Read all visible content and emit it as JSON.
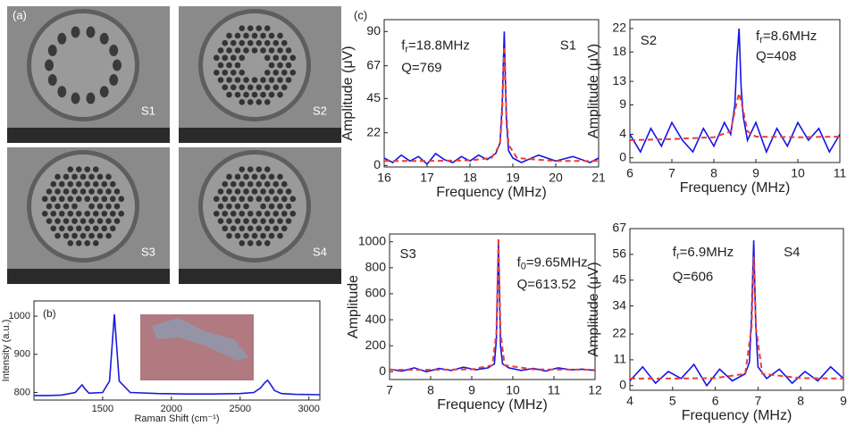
{
  "panel_labels": [
    "(a)",
    "(b)",
    "(c)"
  ],
  "sem_labels": [
    "S1",
    "S2",
    "S3",
    "S4"
  ],
  "chart_data": [
    {
      "type": "line",
      "xlabel": "Raman Shift (cm⁻¹)",
      "ylabel": "Intensity (a.u.)",
      "xlim": [
        1000,
        3080
      ],
      "xticks": [
        1500,
        2000,
        2500,
        3000
      ],
      "ylim": [
        780,
        1040
      ],
      "yticks": [
        800,
        900,
        1000
      ],
      "series": [
        {
          "color": "#1a1adc",
          "x": [
            1000,
            1100,
            1200,
            1300,
            1330,
            1350,
            1370,
            1400,
            1500,
            1550,
            1570,
            1585,
            1600,
            1620,
            1700,
            1900,
            2100,
            2300,
            2500,
            2600,
            2650,
            2680,
            2700,
            2720,
            2750,
            2800,
            2900,
            3080
          ],
          "values": [
            792,
            792,
            793,
            800,
            812,
            820,
            810,
            798,
            800,
            830,
            930,
            1005,
            930,
            830,
            800,
            797,
            796,
            796,
            797,
            800,
            812,
            826,
            832,
            822,
            805,
            797,
            795,
            794
          ]
        }
      ]
    },
    {
      "type": "line",
      "xlabel": "Frequency  (MHz)",
      "ylabel": "Amplitude (μV)",
      "annotations": [
        [
          "f",
          "r",
          "=18.8MHz"
        ],
        "Q=769",
        "S1"
      ],
      "xlim": [
        16,
        21
      ],
      "xticks": [
        16,
        17,
        18,
        19,
        20,
        21
      ],
      "ylim": [
        -1,
        98
      ],
      "yticks": [
        0,
        22,
        45,
        67,
        90
      ],
      "series": [
        {
          "color": "#1414e6",
          "x": [
            16,
            16.2,
            16.4,
            16.6,
            16.8,
            17,
            17.2,
            17.4,
            17.6,
            17.8,
            18,
            18.2,
            18.4,
            18.6,
            18.7,
            18.75,
            18.8,
            18.85,
            18.9,
            19,
            19.2,
            19.6,
            20,
            20.4,
            20.8,
            21
          ],
          "values": [
            5,
            2,
            7,
            3,
            6,
            1,
            8,
            4,
            2,
            6,
            3,
            7,
            4,
            8,
            15,
            40,
            90,
            30,
            10,
            5,
            2,
            7,
            3,
            6,
            2,
            5
          ]
        },
        {
          "color": "#e8403a",
          "dash": true,
          "x": [
            16,
            17,
            18,
            18.5,
            18.7,
            18.75,
            18.8,
            18.85,
            18.9,
            19.1,
            20,
            21
          ],
          "values": [
            3,
            3,
            3.5,
            5,
            14,
            35,
            80,
            35,
            14,
            5,
            3,
            3
          ]
        }
      ]
    },
    {
      "type": "line",
      "xlabel": "Frequency  (MHz)",
      "ylabel": "Amplitude (μV)",
      "annotations": [
        [
          "f",
          "r",
          "=8.6MHz"
        ],
        "Q=408",
        "S2"
      ],
      "xlim": [
        6,
        11
      ],
      "xticks": [
        6,
        7,
        8,
        9,
        10,
        11
      ],
      "ylim": [
        -0.8,
        23.5
      ],
      "yticks": [
        0,
        4,
        9,
        13,
        18,
        22
      ],
      "series": [
        {
          "color": "#1414e6",
          "x": [
            6,
            6.25,
            6.5,
            6.75,
            7,
            7.25,
            7.5,
            7.75,
            8,
            8.25,
            8.4,
            8.5,
            8.55,
            8.6,
            8.65,
            8.7,
            8.8,
            9,
            9.25,
            9.5,
            9.75,
            10,
            10.25,
            10.5,
            10.75,
            11
          ],
          "values": [
            4,
            1,
            5,
            2,
            6,
            3,
            1,
            5,
            2,
            6,
            4,
            9,
            17,
            22,
            12,
            7,
            3,
            6,
            1,
            5,
            2,
            6,
            3,
            5,
            1,
            4
          ]
        },
        {
          "color": "#e8403a",
          "dash": true,
          "x": [
            6,
            7,
            8,
            8.4,
            8.5,
            8.6,
            8.7,
            8.8,
            9,
            10,
            11
          ],
          "values": [
            3,
            3.2,
            3.5,
            4.5,
            8,
            11,
            8,
            4.5,
            3.6,
            3.5,
            3.6
          ]
        }
      ]
    },
    {
      "type": "line",
      "xlabel": "Frequency  (MHz)",
      "ylabel": "Amplitude",
      "annotations": [
        [
          "f",
          "0",
          "=9.65MHz"
        ],
        "Q=613.52",
        "S3"
      ],
      "xlim": [
        7,
        12
      ],
      "xticks": [
        7,
        8,
        9,
        10,
        11,
        12
      ],
      "ylim": [
        -60,
        1060
      ],
      "yticks": [
        0,
        200,
        400,
        600,
        800,
        1000
      ],
      "series": [
        {
          "color": "#1414e6",
          "x": [
            7,
            7.3,
            7.6,
            7.9,
            8.2,
            8.5,
            8.8,
            9.1,
            9.4,
            9.55,
            9.6,
            9.65,
            9.7,
            9.75,
            9.9,
            10.2,
            10.5,
            10.8,
            11.1,
            11.4,
            11.7,
            12
          ],
          "values": [
            20,
            5,
            30,
            0,
            25,
            10,
            35,
            15,
            30,
            60,
            250,
            980,
            200,
            60,
            30,
            10,
            25,
            5,
            30,
            15,
            20,
            10
          ]
        },
        {
          "color": "#e8403a",
          "dash": true,
          "x": [
            7,
            8,
            9,
            9.5,
            9.6,
            9.65,
            9.7,
            9.8,
            10.5,
            12
          ],
          "values": [
            15,
            15,
            18,
            50,
            300,
            1030,
            300,
            50,
            18,
            15
          ]
        }
      ]
    },
    {
      "type": "line",
      "xlabel": "Frequency  (MHz)",
      "ylabel": "Amplitude (μV)",
      "annotations": [
        [
          "f",
          "r",
          "=6.9MHz"
        ],
        "Q=606",
        "S4"
      ],
      "xlim": [
        4,
        9
      ],
      "xticks": [
        4,
        5,
        6,
        7,
        8,
        9
      ],
      "ylim": [
        -2,
        67
      ],
      "yticks": [
        0,
        11,
        22,
        34,
        45,
        56,
        67
      ],
      "series": [
        {
          "color": "#1414e6",
          "x": [
            4,
            4.3,
            4.6,
            4.9,
            5.2,
            5.5,
            5.8,
            6.1,
            6.4,
            6.7,
            6.8,
            6.85,
            6.9,
            6.95,
            7,
            7.2,
            7.5,
            7.8,
            8.1,
            8.4,
            8.7,
            9
          ],
          "values": [
            2,
            8,
            1,
            6,
            3,
            9,
            0,
            7,
            2,
            5,
            10,
            30,
            62,
            25,
            8,
            3,
            7,
            1,
            6,
            2,
            8,
            3
          ]
        },
        {
          "color": "#e8403a",
          "dash": true,
          "x": [
            4,
            5,
            6,
            6.7,
            6.85,
            6.9,
            6.95,
            7.1,
            8,
            9
          ],
          "values": [
            3,
            3,
            3.2,
            5,
            25,
            55,
            25,
            5,
            3.2,
            3
          ]
        }
      ]
    }
  ]
}
